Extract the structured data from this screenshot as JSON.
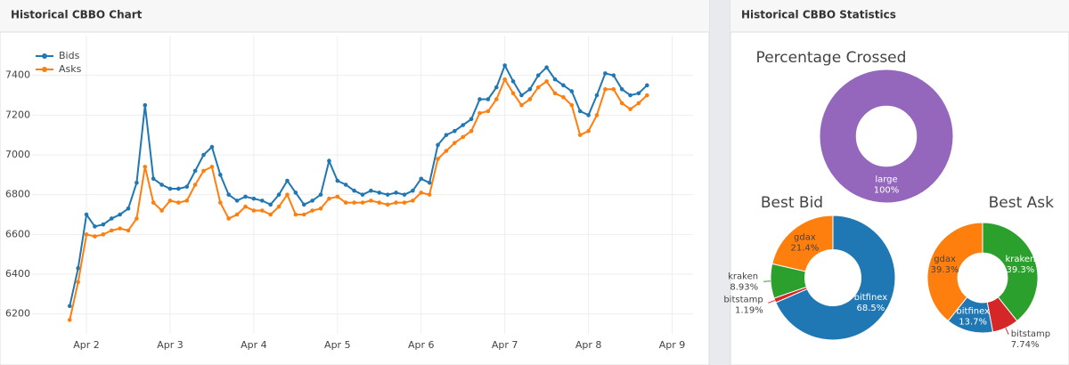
{
  "panels": [
    {
      "title": "Historical CBBO Chart"
    },
    {
      "title": "Historical CBBO Statistics"
    }
  ],
  "chart_data": [
    {
      "type": "line",
      "legend": "top-left",
      "grid": true,
      "markers": true,
      "x": [
        1.8,
        1.9,
        2,
        2.1,
        2.2,
        2.3,
        2.4,
        2.5,
        2.6,
        2.7,
        2.8,
        2.9,
        3,
        3.1,
        3.2,
        3.3,
        3.4,
        3.5,
        3.6,
        3.7,
        3.8,
        3.9,
        4,
        4.1,
        4.2,
        4.3,
        4.4,
        4.5,
        4.6,
        4.7,
        4.8,
        4.9,
        5,
        5.1,
        5.2,
        5.3,
        5.4,
        5.5,
        5.6,
        5.7,
        5.8,
        5.9,
        6,
        6.1,
        6.2,
        6.3,
        6.4,
        6.5,
        6.6,
        6.7,
        6.8,
        6.9,
        7,
        7.1,
        7.2,
        7.3,
        7.4,
        7.5,
        7.6,
        7.7,
        7.8,
        7.9,
        8,
        8.1,
        8.2,
        8.3,
        8.4,
        8.5,
        8.6,
        8.7
      ],
      "series": [
        {
          "name": "Bids",
          "color": "#1f77b4",
          "values": [
            6240,
            6430,
            6700,
            6640,
            6650,
            6680,
            6700,
            6730,
            6860,
            7250,
            6880,
            6850,
            6830,
            6830,
            6840,
            6920,
            7000,
            7040,
            6900,
            6800,
            6770,
            6790,
            6780,
            6770,
            6750,
            6800,
            6870,
            6810,
            6750,
            6770,
            6800,
            6970,
            6870,
            6850,
            6820,
            6800,
            6820,
            6810,
            6800,
            6810,
            6800,
            6820,
            6880,
            6860,
            7050,
            7100,
            7120,
            7150,
            7180,
            7280,
            7280,
            7340,
            7450,
            7370,
            7300,
            7330,
            7400,
            7440,
            7380,
            7350,
            7320,
            7220,
            7200,
            7300,
            7410,
            7400,
            7330,
            7300,
            7310,
            7350
          ]
        },
        {
          "name": "Asks",
          "color": "#ff7f0e",
          "values": [
            6170,
            6360,
            6600,
            6590,
            6600,
            6620,
            6630,
            6620,
            6680,
            6940,
            6760,
            6720,
            6770,
            6760,
            6770,
            6850,
            6920,
            6940,
            6760,
            6680,
            6700,
            6740,
            6720,
            6720,
            6700,
            6740,
            6800,
            6700,
            6700,
            6720,
            6730,
            6780,
            6790,
            6760,
            6760,
            6760,
            6770,
            6760,
            6750,
            6760,
            6760,
            6770,
            6810,
            6800,
            6980,
            7020,
            7060,
            7090,
            7120,
            7210,
            7220,
            7280,
            7380,
            7310,
            7250,
            7280,
            7340,
            7370,
            7310,
            7290,
            7250,
            7100,
            7120,
            7200,
            7330,
            7330,
            7260,
            7230,
            7260,
            7300
          ]
        }
      ],
      "xlim": [
        1.35,
        9.25
      ],
      "xticks": [
        {
          "value": 2,
          "label": "Apr 2"
        },
        {
          "value": 3,
          "label": "Apr 3"
        },
        {
          "value": 4,
          "label": "Apr 4"
        },
        {
          "value": 5,
          "label": "Apr 5"
        },
        {
          "value": 6,
          "label": "Apr 6"
        },
        {
          "value": 7,
          "label": "Apr 7"
        },
        {
          "value": 8,
          "label": "Apr 8"
        },
        {
          "value": 9,
          "label": "Apr 9"
        }
      ],
      "ylim": [
        6100,
        7600
      ],
      "yticks": [
        6200,
        6400,
        6600,
        6800,
        7000,
        7200,
        7400
      ]
    },
    {
      "type": "pie",
      "title": "Percentage Crossed",
      "categories": [
        "large"
      ],
      "values": [
        100
      ],
      "value_labels": [
        "100%"
      ],
      "colors": [
        "#9467bd"
      ]
    },
    {
      "type": "pie",
      "title": "Best Bid",
      "categories": [
        "bitfinex",
        "bitstamp",
        "kraken",
        "gdax"
      ],
      "values": [
        68.5,
        1.19,
        8.93,
        21.4
      ],
      "value_labels": [
        "68.5%",
        "1.19%",
        "8.93%",
        "21.4%"
      ],
      "colors": [
        "#1f77b4",
        "#d62728",
        "#2ca02c",
        "#ff7f0e"
      ]
    },
    {
      "type": "pie",
      "title": "Best Ask",
      "categories": [
        "kraken",
        "bitstamp",
        "bitfinex",
        "gdax"
      ],
      "values": [
        39.3,
        7.74,
        13.7,
        39.3
      ],
      "value_labels": [
        "39.3%",
        "7.74%",
        "13.7%",
        "39.3%"
      ],
      "colors": [
        "#2ca02c",
        "#d62728",
        "#1f77b4",
        "#ff7f0e"
      ]
    }
  ]
}
